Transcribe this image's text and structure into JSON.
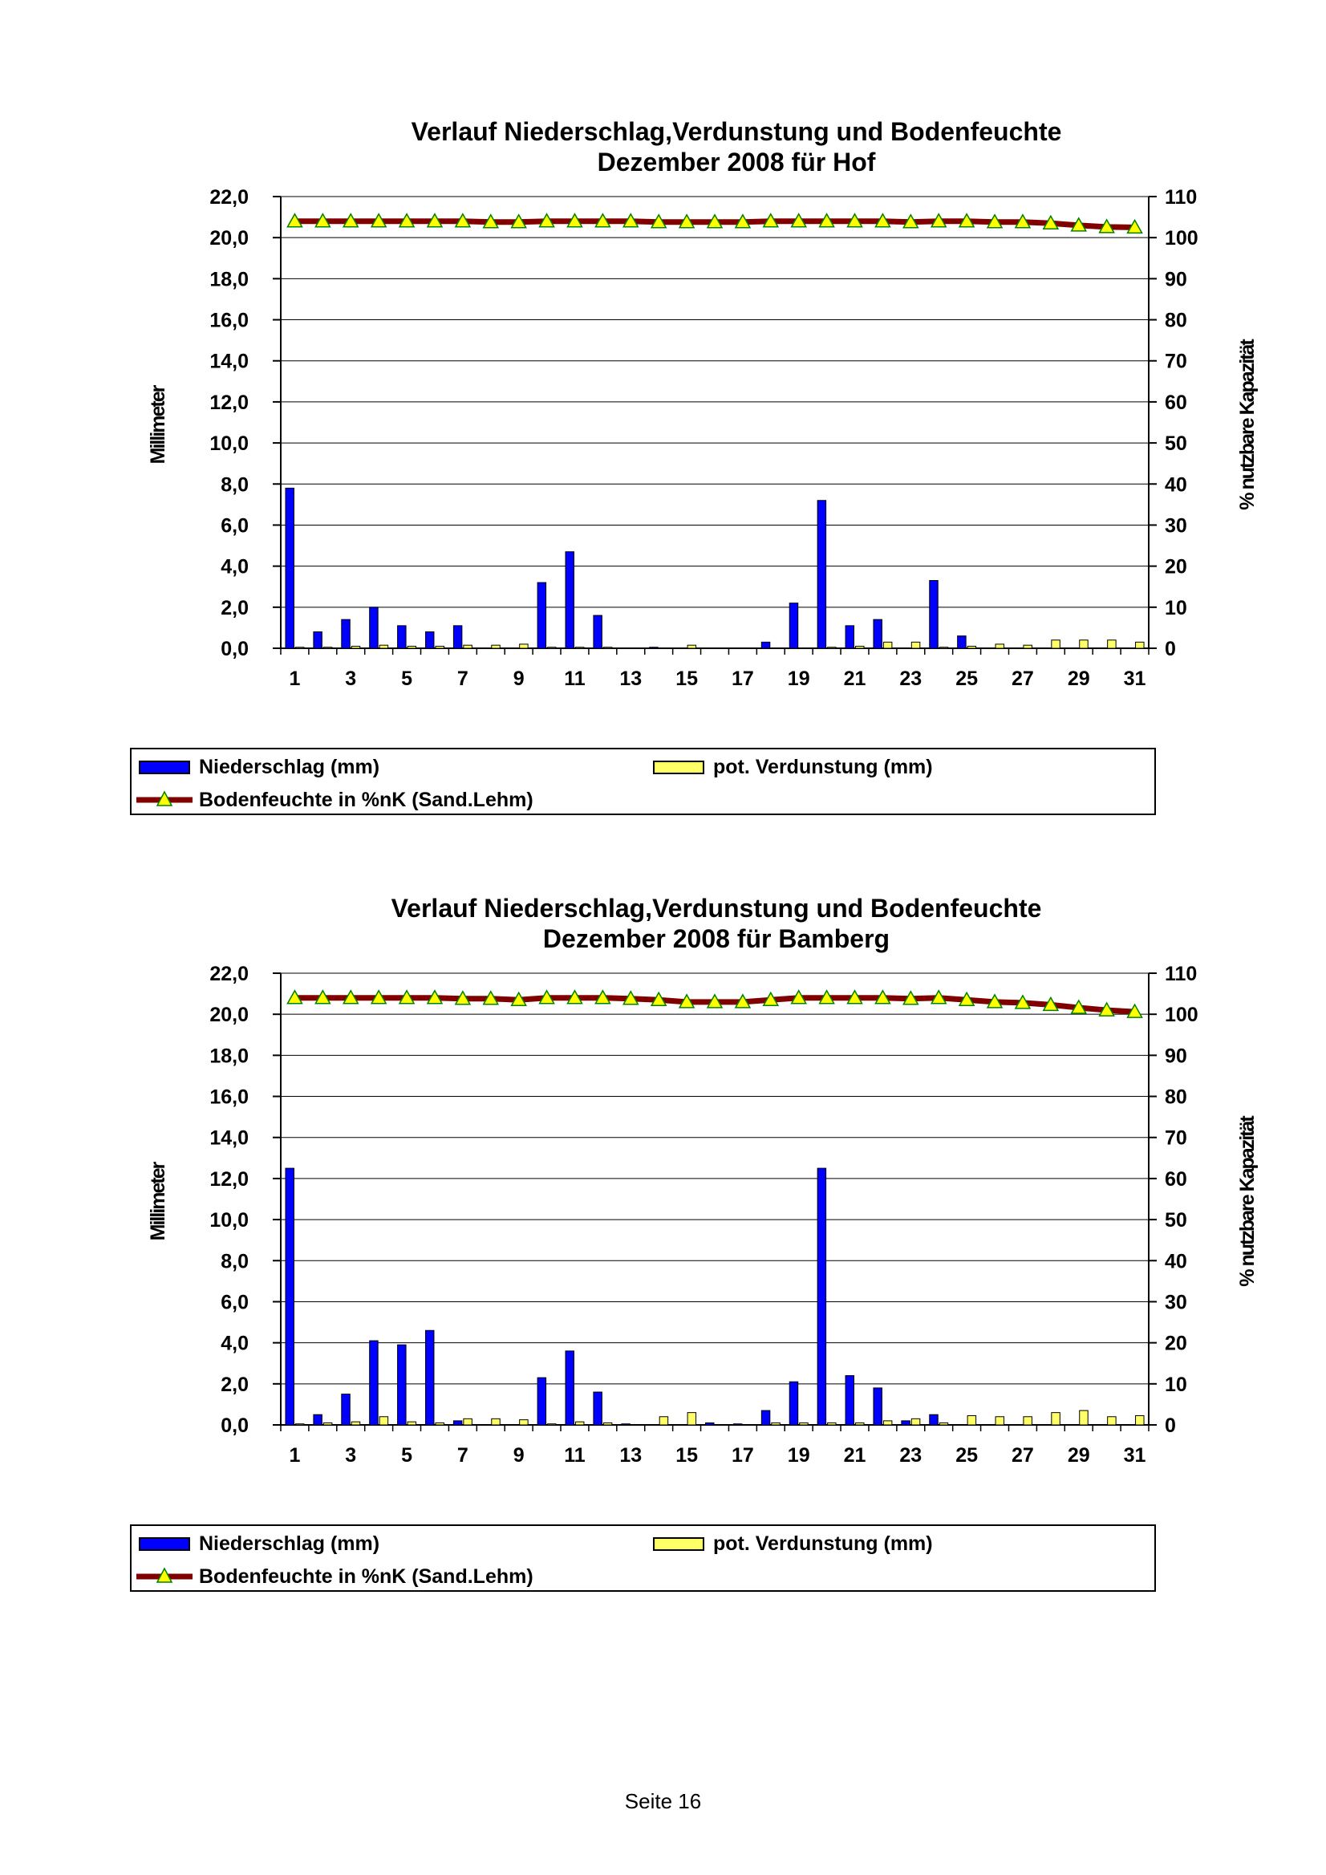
{
  "colors": {
    "precip": "#0000ff",
    "evap": "#ffff66",
    "soil_line": "#800000",
    "soil_marker": "#ffff00",
    "grid": "#000000"
  },
  "charts": [
    {
      "title_line1": "Verlauf Niederschlag,Verdunstung und Bodenfeuchte",
      "title_line2": "Dezember 2008 für Hof",
      "ylabel_left": "Millimeter",
      "ylabel_right": "% nutzbare Kapazität",
      "legend": {
        "precip": "Niederschlag (mm)",
        "evap": "pot. Verdunstung (mm)",
        "soil": "Bodenfeuchte in %nK (Sand.Lehm)"
      }
    },
    {
      "title_line1": "Verlauf Niederschlag,Verdunstung und Bodenfeuchte",
      "title_line2": "Dezember 2008 für Bamberg",
      "ylabel_left": "Millimeter",
      "ylabel_right": "% nutzbare Kapazität",
      "legend": {
        "precip": "Niederschlag (mm)",
        "evap": "pot. Verdunstung (mm)",
        "soil": "Bodenfeuchte in %nK (Sand.Lehm)"
      }
    }
  ],
  "chart_data": [
    {
      "type": "bar",
      "title": "Verlauf Niederschlag,Verdunstung und Bodenfeuchte Dezember 2008 für Hof",
      "x": [
        1,
        2,
        3,
        4,
        5,
        6,
        7,
        8,
        9,
        10,
        11,
        12,
        13,
        14,
        15,
        16,
        17,
        18,
        19,
        20,
        21,
        22,
        23,
        24,
        25,
        26,
        27,
        28,
        29,
        30,
        31
      ],
      "x_tick_labels": [
        "1",
        "3",
        "5",
        "7",
        "9",
        "11",
        "13",
        "15",
        "17",
        "19",
        "21",
        "23",
        "25",
        "27",
        "29",
        "31"
      ],
      "ylabel": "Millimeter",
      "ylim": [
        0,
        22
      ],
      "y_tick_labels": [
        "0,0",
        "2,0",
        "4,0",
        "6,0",
        "8,0",
        "10,0",
        "12,0",
        "14,0",
        "16,0",
        "18,0",
        "20,0",
        "22,0"
      ],
      "y2label": "% nutzbare Kapazität",
      "y2lim": [
        0,
        110
      ],
      "y2_tick_labels": [
        "0",
        "10",
        "20",
        "30",
        "40",
        "50",
        "60",
        "70",
        "80",
        "90",
        "100",
        "110"
      ],
      "grid": true,
      "legend_position": "bottom",
      "series": [
        {
          "name": "Niederschlag (mm)",
          "kind": "bar",
          "axis": "left",
          "values": [
            7.8,
            0.8,
            1.4,
            2.0,
            1.1,
            0.8,
            1.1,
            0,
            0,
            3.2,
            4.7,
            1.6,
            0,
            0.05,
            0,
            0,
            0,
            0.3,
            2.2,
            7.2,
            1.1,
            1.4,
            0,
            3.3,
            0.6,
            0,
            0,
            0,
            0,
            0,
            0
          ]
        },
        {
          "name": "pot. Verdunstung (mm)",
          "kind": "bar",
          "axis": "left",
          "values": [
            0.05,
            0.05,
            0.1,
            0.15,
            0.1,
            0.1,
            0.15,
            0.15,
            0.2,
            0.05,
            0.05,
            0.05,
            0,
            0,
            0.15,
            0,
            0,
            0,
            0,
            0.05,
            0.1,
            0.3,
            0.3,
            0.05,
            0.1,
            0.2,
            0.15,
            0.4,
            0.4,
            0.4,
            0.3
          ]
        },
        {
          "name": "Bodenfeuchte in %nK (Sand.Lehm)",
          "kind": "line",
          "axis": "right",
          "values": [
            104,
            104,
            104,
            104,
            104,
            104,
            104,
            103.8,
            103.8,
            104,
            104,
            104,
            104,
            103.8,
            103.8,
            103.8,
            103.8,
            104,
            104,
            104,
            104,
            104,
            103.8,
            104,
            104,
            103.8,
            103.8,
            103.5,
            103,
            102.6,
            102.5
          ]
        }
      ]
    },
    {
      "type": "bar",
      "title": "Verlauf Niederschlag,Verdunstung und Bodenfeuchte Dezember 2008 für Bamberg",
      "x": [
        1,
        2,
        3,
        4,
        5,
        6,
        7,
        8,
        9,
        10,
        11,
        12,
        13,
        14,
        15,
        16,
        17,
        18,
        19,
        20,
        21,
        22,
        23,
        24,
        25,
        26,
        27,
        28,
        29,
        30,
        31
      ],
      "x_tick_labels": [
        "1",
        "3",
        "5",
        "7",
        "9",
        "11",
        "13",
        "15",
        "17",
        "19",
        "21",
        "23",
        "25",
        "27",
        "29",
        "31"
      ],
      "ylabel": "Millimeter",
      "ylim": [
        0,
        22
      ],
      "y_tick_labels": [
        "0,0",
        "2,0",
        "4,0",
        "6,0",
        "8,0",
        "10,0",
        "12,0",
        "14,0",
        "16,0",
        "18,0",
        "20,0",
        "22,0"
      ],
      "y2label": "% nutzbare Kapazität",
      "y2lim": [
        0,
        110
      ],
      "y2_tick_labels": [
        "0",
        "10",
        "20",
        "30",
        "40",
        "50",
        "60",
        "70",
        "80",
        "90",
        "100",
        "110"
      ],
      "grid": true,
      "legend_position": "bottom",
      "series": [
        {
          "name": "Niederschlag (mm)",
          "kind": "bar",
          "axis": "left",
          "values": [
            12.5,
            0.5,
            1.5,
            4.1,
            3.9,
            4.6,
            0.2,
            0,
            0,
            2.3,
            3.6,
            1.6,
            0.05,
            0,
            0,
            0.1,
            0.05,
            0.7,
            2.1,
            12.5,
            2.4,
            1.8,
            0.2,
            0.5,
            0,
            0,
            0,
            0,
            0,
            0,
            0
          ]
        },
        {
          "name": "pot. Verdunstung (mm)",
          "kind": "bar",
          "axis": "left",
          "values": [
            0.05,
            0.1,
            0.15,
            0.4,
            0.15,
            0.1,
            0.3,
            0.3,
            0.25,
            0.05,
            0.15,
            0.1,
            0,
            0.4,
            0.6,
            0,
            0,
            0.1,
            0.1,
            0.1,
            0.1,
            0.2,
            0.3,
            0.1,
            0.45,
            0.4,
            0.4,
            0.6,
            0.7,
            0.4,
            0.45
          ]
        },
        {
          "name": "Bodenfeuchte in %nK (Sand.Lehm)",
          "kind": "line",
          "axis": "right",
          "values": [
            104,
            104,
            104,
            104,
            104,
            104,
            103.8,
            103.8,
            103.5,
            104,
            104,
            104,
            103.8,
            103.5,
            103,
            103,
            103,
            103.5,
            104,
            104,
            104,
            104,
            103.8,
            104,
            103.5,
            103,
            102.8,
            102.3,
            101.6,
            101,
            100.6
          ]
        }
      ]
    }
  ],
  "footer": {
    "page_label": "Seite 16"
  }
}
